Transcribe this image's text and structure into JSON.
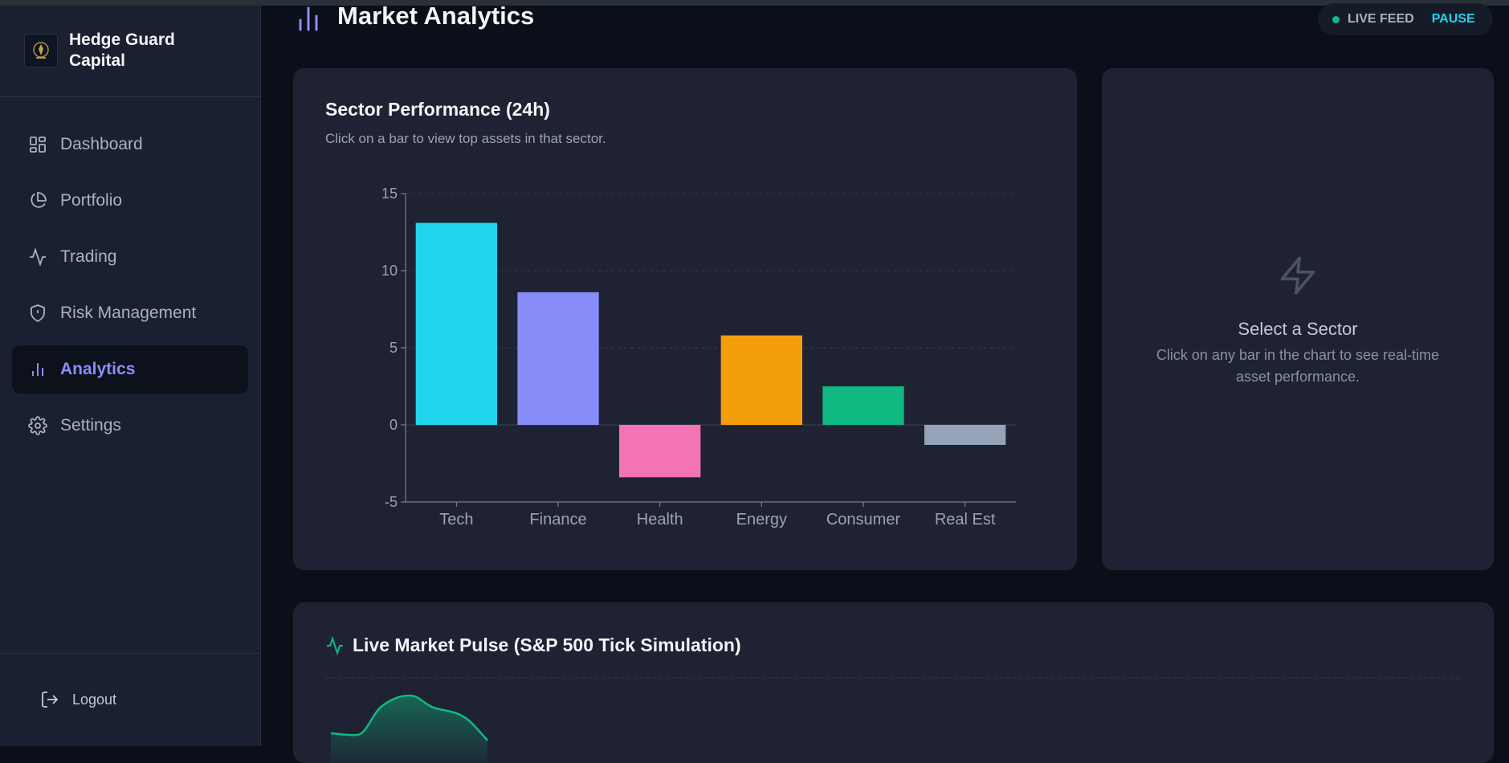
{
  "app": {
    "name": "Hedge Guard Capital"
  },
  "sidebar": {
    "items": [
      {
        "label": "Dashboard",
        "icon": "grid-icon",
        "active": false
      },
      {
        "label": "Portfolio",
        "icon": "pie-chart-icon",
        "active": false
      },
      {
        "label": "Trading",
        "icon": "activity-icon",
        "active": false
      },
      {
        "label": "Risk Management",
        "icon": "shield-icon",
        "active": false
      },
      {
        "label": "Analytics",
        "icon": "bar-chart-icon",
        "active": true
      },
      {
        "label": "Settings",
        "icon": "gear-icon",
        "active": false
      }
    ],
    "logout_label": "Logout"
  },
  "header": {
    "title": "Market Analytics",
    "live_feed_label": "LIVE FEED",
    "pause_label": "PAUSE"
  },
  "sector_chart": {
    "title": "Sector Performance (24h)",
    "subtitle": "Click on a bar to view top assets in that sector."
  },
  "chart_data": {
    "type": "bar",
    "categories": [
      "Tech",
      "Finance",
      "Health",
      "Energy",
      "Consumer",
      "Real Est"
    ],
    "values": [
      13.1,
      8.6,
      -3.4,
      5.8,
      2.5,
      -1.3
    ],
    "colors": [
      "#22d3ee",
      "#888cf8",
      "#f472b6",
      "#f59e0b",
      "#10b981",
      "#94a3b8"
    ],
    "ylim": [
      -5,
      15
    ],
    "yticks": [
      -5,
      0,
      5,
      10,
      15
    ],
    "grid": true
  },
  "sector_panel": {
    "title": "Select a Sector",
    "description": "Click on any bar in the chart to see real-time asset performance."
  },
  "pulse": {
    "title": "Live Market Pulse (S&P 500 Tick Simulation)",
    "accent": "#10b981"
  },
  "colors": {
    "accent": "#8b8ff8",
    "live": "#10b981",
    "pause": "#22d3ee"
  }
}
